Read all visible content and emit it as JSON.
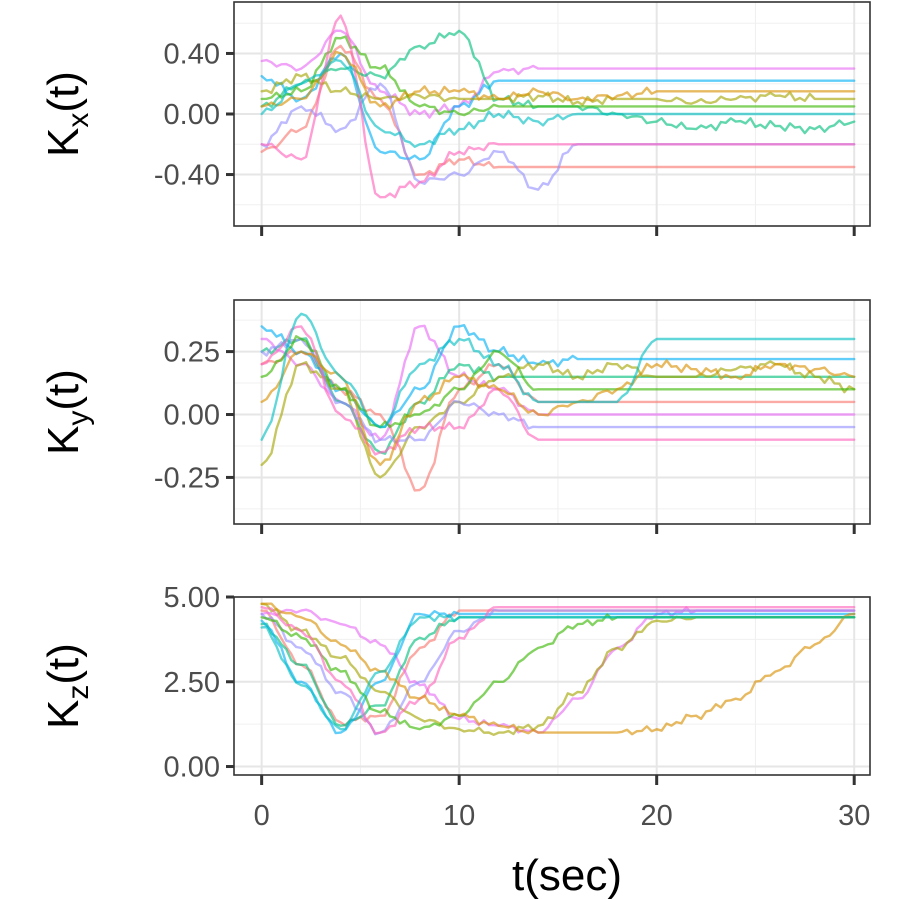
{
  "chart_data": [
    {
      "type": "line",
      "panel": "Kx",
      "ylabel_main": "K",
      "ylabel_sub": "x",
      "ylabel_tail": "(t)",
      "xlabel": "",
      "xlim": [
        -1.4,
        30.8
      ],
      "ylim": [
        -0.74,
        0.74
      ],
      "yticks": [
        -0.4,
        0.0,
        0.4
      ],
      "ytick_labels": [
        "-0.40",
        "0.00",
        "0.40"
      ],
      "xticks": [
        0,
        10,
        20,
        30
      ],
      "xtick_labels_visible": false,
      "note": "Many overlapping series; representative traces sampled at t = 0,2,4,...,30",
      "x": [
        0,
        2,
        4,
        6,
        8,
        10,
        12,
        14,
        16,
        18,
        20,
        22,
        24,
        26,
        28,
        30
      ],
      "series": [
        {
          "name": "s1",
          "color": "#F8766D",
          "values": [
            -0.25,
            -0.1,
            0.45,
            0.1,
            -0.4,
            -0.3,
            -0.35,
            -0.35,
            -0.35,
            -0.35,
            -0.35,
            -0.35,
            -0.35,
            -0.35,
            -0.35,
            -0.35
          ]
        },
        {
          "name": "s2",
          "color": "#E76BF3",
          "values": [
            0.35,
            0.3,
            0.55,
            0.15,
            0.0,
            0.05,
            0.28,
            0.3,
            0.3,
            0.3,
            0.3,
            0.3,
            0.3,
            0.3,
            0.3,
            0.3
          ]
        },
        {
          "name": "s3",
          "color": "#00BF7D",
          "values": [
            0.05,
            0.2,
            0.3,
            0.25,
            0.45,
            0.55,
            0.1,
            0.05,
            0.05,
            0.0,
            -0.05,
            -0.1,
            -0.05,
            -0.08,
            -0.1,
            -0.05
          ]
        },
        {
          "name": "s4",
          "color": "#00B0F6",
          "values": [
            0.25,
            0.1,
            0.4,
            -0.25,
            -0.3,
            0.05,
            0.22,
            0.22,
            0.22,
            0.22,
            0.22,
            0.22,
            0.22,
            0.22,
            0.22,
            0.22
          ]
        },
        {
          "name": "s5",
          "color": "#A3A500",
          "values": [
            0.15,
            0.25,
            0.15,
            0.1,
            0.12,
            0.1,
            0.1,
            0.12,
            0.08,
            0.1,
            0.1,
            0.08,
            0.1,
            0.12,
            0.1,
            0.1
          ]
        },
        {
          "name": "s6",
          "color": "#9590FF",
          "values": [
            -0.2,
            0.05,
            -0.1,
            0.2,
            -0.45,
            -0.4,
            -0.25,
            -0.5,
            -0.2,
            -0.2,
            -0.2,
            -0.2,
            -0.2,
            -0.2,
            -0.2,
            -0.2
          ]
        },
        {
          "name": "s7",
          "color": "#39B600",
          "values": [
            0.1,
            0.15,
            0.5,
            0.3,
            0.05,
            0.0,
            0.05,
            0.05,
            0.05,
            0.05,
            0.05,
            0.05,
            0.05,
            0.05,
            0.05,
            0.05
          ]
        },
        {
          "name": "s8",
          "color": "#FF62BC",
          "values": [
            -0.2,
            -0.3,
            0.65,
            -0.55,
            -0.45,
            -0.25,
            -0.2,
            -0.2,
            -0.2,
            -0.2,
            -0.2,
            -0.2,
            -0.2,
            -0.2,
            -0.2,
            -0.2
          ]
        },
        {
          "name": "s9",
          "color": "#D89000",
          "values": [
            0.05,
            0.1,
            0.4,
            0.05,
            0.15,
            0.15,
            0.1,
            0.15,
            0.1,
            0.12,
            0.15,
            0.15,
            0.15,
            0.15,
            0.15,
            0.15
          ]
        },
        {
          "name": "s10",
          "color": "#00BFC4",
          "values": [
            0.0,
            0.2,
            0.35,
            -0.1,
            -0.2,
            -0.1,
            0.0,
            -0.05,
            0.0,
            0.0,
            0.0,
            0.0,
            0.0,
            0.0,
            0.0,
            0.0
          ]
        }
      ]
    },
    {
      "type": "line",
      "panel": "Ky",
      "ylabel_main": "K",
      "ylabel_sub": "y",
      "ylabel_tail": "(t)",
      "xlabel": "",
      "xlim": [
        -1.4,
        30.8
      ],
      "ylim": [
        -0.435,
        0.455
      ],
      "yticks": [
        -0.25,
        0.0,
        0.25
      ],
      "ytick_labels": [
        "-0.25",
        "0.00",
        "0.25"
      ],
      "xticks": [
        0,
        10,
        20,
        30
      ],
      "xtick_labels_visible": false,
      "note": "Many overlapping series; representative traces sampled at t = 0,2,4,...,30",
      "x": [
        0,
        2,
        4,
        6,
        8,
        10,
        12,
        14,
        16,
        18,
        20,
        22,
        24,
        26,
        28,
        30
      ],
      "series": [
        {
          "name": "s1",
          "color": "#F8766D",
          "values": [
            0.2,
            0.25,
            0.1,
            0.0,
            -0.3,
            0.1,
            0.2,
            0.05,
            0.05,
            0.05,
            0.05,
            0.05,
            0.05,
            0.05,
            0.05,
            0.05
          ]
        },
        {
          "name": "s2",
          "color": "#E76BF3",
          "values": [
            0.3,
            0.2,
            0.05,
            -0.1,
            0.35,
            0.15,
            0.1,
            0.0,
            0.0,
            0.0,
            0.0,
            0.0,
            0.0,
            0.0,
            0.0,
            0.0
          ]
        },
        {
          "name": "s3",
          "color": "#00BF7D",
          "values": [
            0.25,
            0.3,
            0.05,
            -0.15,
            0.05,
            0.2,
            0.15,
            0.15,
            0.15,
            0.15,
            0.15,
            0.15,
            0.15,
            0.15,
            0.15,
            0.15
          ]
        },
        {
          "name": "s4",
          "color": "#00B0F6",
          "values": [
            0.35,
            0.25,
            0.1,
            -0.05,
            0.1,
            0.35,
            0.25,
            0.2,
            0.22,
            0.22,
            0.22,
            0.22,
            0.22,
            0.22,
            0.22,
            0.22
          ]
        },
        {
          "name": "s5",
          "color": "#A3A500",
          "values": [
            -0.2,
            0.2,
            0.1,
            -0.25,
            -0.05,
            0.05,
            0.15,
            0.2,
            0.15,
            0.2,
            0.15,
            0.15,
            0.18,
            0.2,
            0.15,
            0.1
          ]
        },
        {
          "name": "s6",
          "color": "#9590FF",
          "values": [
            0.25,
            0.3,
            0.05,
            -0.1,
            -0.1,
            0.05,
            0.0,
            -0.05,
            -0.05,
            -0.05,
            -0.05,
            -0.05,
            -0.05,
            -0.05,
            -0.05,
            -0.05
          ]
        },
        {
          "name": "s7",
          "color": "#39B600",
          "values": [
            0.15,
            0.3,
            0.1,
            -0.05,
            0.0,
            0.1,
            0.25,
            0.1,
            0.1,
            0.1,
            0.1,
            0.1,
            0.1,
            0.1,
            0.1,
            0.1
          ]
        },
        {
          "name": "s8",
          "color": "#FF62BC",
          "values": [
            0.2,
            0.35,
            0.0,
            -0.15,
            -0.05,
            -0.05,
            0.1,
            -0.1,
            -0.1,
            -0.1,
            -0.1,
            -0.1,
            -0.1,
            -0.1,
            -0.1,
            -0.1
          ]
        },
        {
          "name": "s9",
          "color": "#D89000",
          "values": [
            0.05,
            0.25,
            0.15,
            -0.2,
            0.05,
            0.15,
            0.1,
            0.0,
            0.05,
            0.1,
            0.2,
            0.18,
            0.15,
            0.2,
            0.18,
            0.15
          ]
        },
        {
          "name": "s10",
          "color": "#00BFC4",
          "values": [
            -0.1,
            0.4,
            0.15,
            -0.05,
            0.2,
            0.3,
            0.2,
            0.05,
            0.05,
            0.05,
            0.3,
            0.3,
            0.3,
            0.3,
            0.3,
            0.3
          ]
        }
      ]
    },
    {
      "type": "line",
      "panel": "Kz",
      "ylabel_main": "K",
      "ylabel_sub": "z",
      "ylabel_tail": "(t)",
      "xlabel": "t(sec)",
      "xlim": [
        -1.4,
        30.8
      ],
      "ylim": [
        -0.25,
        5.0
      ],
      "yticks": [
        0.0,
        2.5,
        5.0
      ],
      "ytick_labels": [
        "0.00",
        "2.50",
        "5.00"
      ],
      "xticks": [
        0,
        10,
        20,
        30
      ],
      "xtick_labels": [
        "0",
        "10",
        "20",
        "30"
      ],
      "xtick_labels_visible": true,
      "note": "Many overlapping series; representative traces sampled at t = 0,2,4,...,30",
      "x": [
        0,
        2,
        4,
        6,
        8,
        10,
        12,
        14,
        16,
        18,
        20,
        22,
        24,
        26,
        28,
        30
      ],
      "series": [
        {
          "name": "s1",
          "color": "#F8766D",
          "values": [
            4.6,
            3.0,
            1.3,
            1.5,
            3.5,
            4.6,
            4.6,
            4.6,
            4.6,
            4.6,
            4.6,
            4.6,
            4.6,
            4.6,
            4.6,
            4.6
          ]
        },
        {
          "name": "s2",
          "color": "#E76BF3",
          "values": [
            4.5,
            4.6,
            4.2,
            3.6,
            2.4,
            1.4,
            1.2,
            1.0,
            2.0,
            3.5,
            4.5,
            4.6,
            4.6,
            4.6,
            4.6,
            4.6
          ]
        },
        {
          "name": "s3",
          "color": "#00BF7D",
          "values": [
            4.2,
            3.0,
            1.2,
            1.8,
            3.8,
            4.4,
            4.4,
            4.4,
            4.4,
            4.4,
            4.4,
            4.4,
            4.4,
            4.4,
            4.4,
            4.4
          ]
        },
        {
          "name": "s4",
          "color": "#00B0F6",
          "values": [
            4.3,
            2.5,
            1.0,
            2.5,
            4.5,
            4.5,
            4.5,
            4.5,
            4.5,
            4.5,
            4.5,
            4.5,
            4.5,
            4.5,
            4.5,
            4.5
          ]
        },
        {
          "name": "s5",
          "color": "#A3A500",
          "values": [
            4.8,
            4.0,
            3.2,
            2.2,
            1.4,
            1.1,
            1.0,
            1.2,
            2.2,
            3.5,
            4.3,
            4.4,
            4.4,
            4.4,
            4.4,
            4.4
          ]
        },
        {
          "name": "s6",
          "color": "#9590FF",
          "values": [
            4.5,
            3.5,
            2.2,
            1.0,
            2.5,
            4.0,
            4.6,
            4.6,
            4.6,
            4.6,
            4.6,
            4.6,
            4.6,
            4.6,
            4.6,
            4.6
          ]
        },
        {
          "name": "s7",
          "color": "#39B600",
          "values": [
            4.4,
            3.8,
            2.8,
            1.6,
            1.1,
            1.5,
            2.5,
            3.5,
            4.2,
            4.4,
            4.4,
            4.4,
            4.4,
            4.4,
            4.4,
            4.4
          ]
        },
        {
          "name": "s8",
          "color": "#FF62BC",
          "values": [
            4.7,
            4.0,
            2.5,
            1.0,
            2.0,
            3.8,
            4.7,
            4.7,
            4.7,
            4.7,
            4.7,
            4.7,
            4.7,
            4.7,
            4.7,
            4.7
          ]
        },
        {
          "name": "s9",
          "color": "#D89000",
          "values": [
            4.8,
            4.4,
            3.6,
            2.8,
            2.0,
            1.5,
            1.2,
            1.0,
            1.0,
            1.0,
            1.1,
            1.5,
            2.0,
            2.8,
            3.6,
            4.5
          ]
        },
        {
          "name": "s10",
          "color": "#00BFC4",
          "values": [
            4.1,
            2.4,
            1.1,
            2.8,
            4.4,
            4.4,
            4.4,
            4.4,
            4.4,
            4.4,
            4.4,
            4.4,
            4.4,
            4.4,
            4.4,
            4.4
          ]
        }
      ]
    }
  ]
}
